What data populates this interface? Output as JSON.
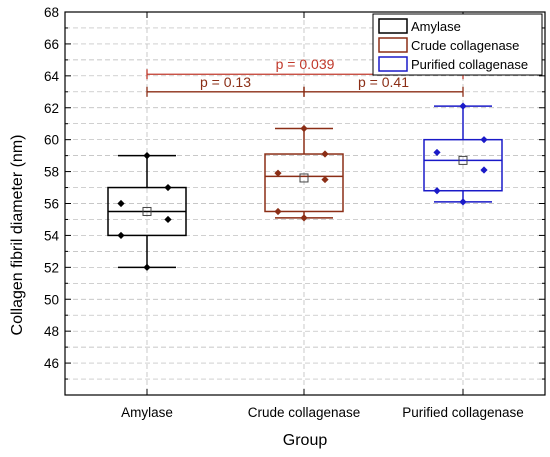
{
  "chart_data": {
    "type": "box",
    "xlabel": "Group",
    "ylabel": "Collagen fibril diameter (nm)",
    "ylim": [
      44,
      68
    ],
    "yticks": [
      46,
      48,
      50,
      52,
      54,
      56,
      58,
      60,
      62,
      64,
      66,
      68
    ],
    "grid": true,
    "legend_position": "top-right",
    "categories": [
      "Amylase",
      "Crude collagenase",
      "Purified collagenase"
    ],
    "series": [
      {
        "name": "Amylase",
        "color": "#000000",
        "whisker_low": 52,
        "q1": 54,
        "median": 55.5,
        "q3": 57,
        "whisker_high": 59,
        "mean": 55.5,
        "points": [
          59,
          57,
          56,
          55,
          54,
          52
        ]
      },
      {
        "name": "Crude collagenase",
        "color": "#8B2E16",
        "whisker_low": 55.1,
        "q1": 55.5,
        "median": 57.7,
        "q3": 59.1,
        "whisker_high": 60.7,
        "mean": 57.6,
        "points": [
          60.7,
          59.1,
          57.9,
          57.5,
          55.5,
          55.1
        ]
      },
      {
        "name": "Purified collagenase",
        "color": "#1A1AC8",
        "whisker_low": 56.1,
        "q1": 56.8,
        "median": 58.7,
        "q3": 60,
        "whisker_high": 62.1,
        "mean": 58.7,
        "points": [
          62.1,
          60,
          59.2,
          58.1,
          56.8,
          56.1
        ]
      }
    ],
    "annotations": [
      {
        "text": "p = 0.039",
        "from": 0,
        "to": 2,
        "y": 64.1,
        "color": "#C0392B"
      },
      {
        "text": "p = 0.13",
        "from": 0,
        "to": 1,
        "y": 63,
        "color": "#8B2E16"
      },
      {
        "text": "p = 0.41",
        "from": 1,
        "to": 2,
        "y": 63,
        "color": "#8B2E16"
      }
    ]
  }
}
